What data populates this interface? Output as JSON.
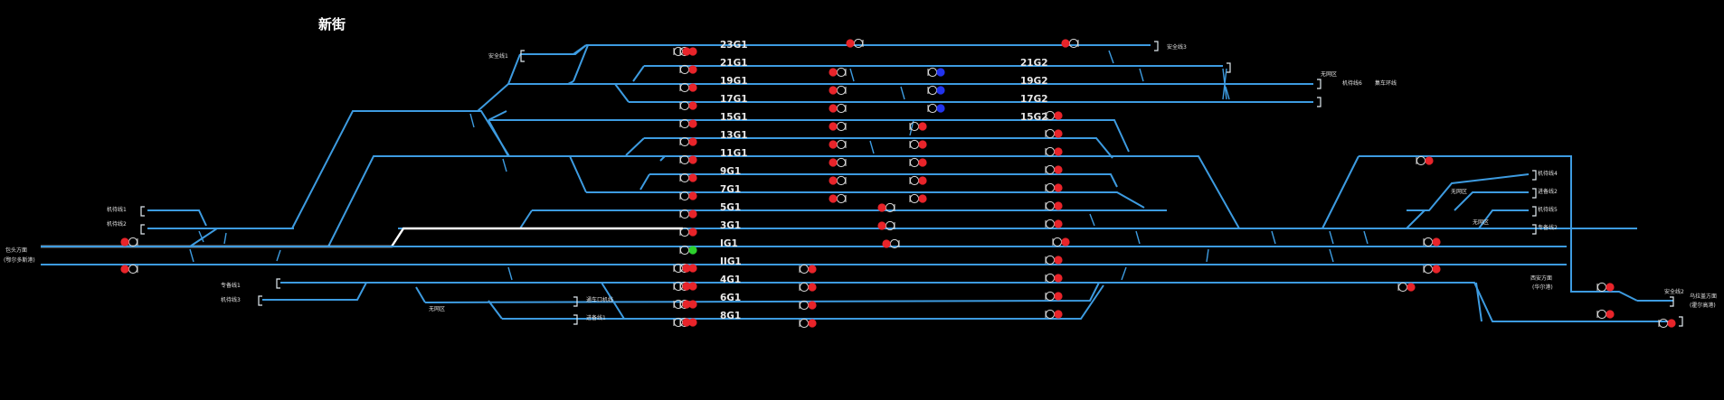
{
  "station": {
    "name": "新街"
  },
  "colors": {
    "track": "#3d9be0",
    "route": "#ffffff",
    "red": "#e8242a",
    "green": "#2dd12d",
    "blue": "#2233ee",
    "background": "#000000"
  },
  "tracks": {
    "t23G1": "23G1",
    "t21G1": "21G1",
    "t19G1": "19G1",
    "t17G1": "17G1",
    "t15G1": "15G1",
    "t13G1": "13G1",
    "t11G1": "11G1",
    "t9G1": "9G1",
    "t7G1": "7G1",
    "t5G1": "5G1",
    "t3G1": "3G1",
    "tIG1": "IG1",
    "tIIG1": "IIG1",
    "t4G1": "4G1",
    "t6G1": "6G1",
    "t8G1": "8G1",
    "t21G2": "21G2",
    "t19G2": "19G2",
    "t17G2": "17G2",
    "t15G2": "15G2"
  },
  "labels": {
    "safety1": "安全线1",
    "safety2": "安全线2",
    "safety3": "安全线3",
    "walk1": "机待线1",
    "walk2": "机待线2",
    "walk3": "机待线3",
    "walk4": "机待线4",
    "walk5": "机待线5",
    "walk6": "机待线6",
    "baotou_dir": "包头方面",
    "baotou_sub": "(鄂尔多斯港)",
    "spare1": "专备线1",
    "spare2": "专备线2",
    "tongchi1": "通车口机线",
    "tongchi2": "进备线2",
    "loco1": "进备线1",
    "jiaoche": "集车环线",
    "noduan1": "无网区",
    "noduan2": "无网区",
    "noduan3": "无网区",
    "noduan4": "无网区",
    "xian_dir": "西安方面",
    "xian_sub": "(华尔港)",
    "wuhai_dir": "乌拉盖方面",
    "wuhai_sub": "(霍尔高港)"
  }
}
